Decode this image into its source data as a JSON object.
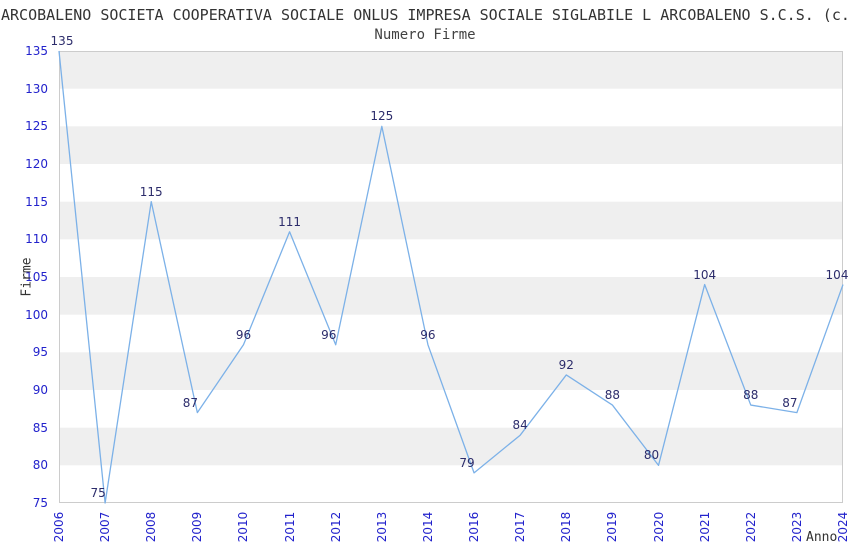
{
  "chart_data": {
    "type": "line",
    "title": "ARCOBALENO SOCIETA COOPERATIVA SOCIALE ONLUS IMPRESA SOCIALE SIGLABILE L ARCOBALENO S.C.S. (c.f.",
    "subtitle": "Numero Firme",
    "xlabel": "Anno",
    "ylabel": "Firme",
    "categories": [
      "2006",
      "2007",
      "2008",
      "2009",
      "2010",
      "2011",
      "2012",
      "2013",
      "2014",
      "2016",
      "2017",
      "2018",
      "2019",
      "2020",
      "2021",
      "2022",
      "2023",
      "2024"
    ],
    "values": [
      135,
      75,
      115,
      87,
      96,
      111,
      96,
      125,
      96,
      79,
      84,
      92,
      88,
      80,
      104,
      88,
      87,
      104
    ],
    "y_ticks": [
      75,
      80,
      85,
      90,
      95,
      100,
      105,
      110,
      115,
      120,
      125,
      130,
      135
    ],
    "ylim": [
      75,
      135
    ],
    "grid": "alternating-horizontal-bands",
    "legend": "none",
    "data_labels": "shown-above-points",
    "colors": {
      "line": "#7cb1e8",
      "tick_label": "#2222cc",
      "data_label": "#2c2c6b",
      "band": "#efefef",
      "plot_border": "#cccccc",
      "title": "#333333"
    }
  }
}
